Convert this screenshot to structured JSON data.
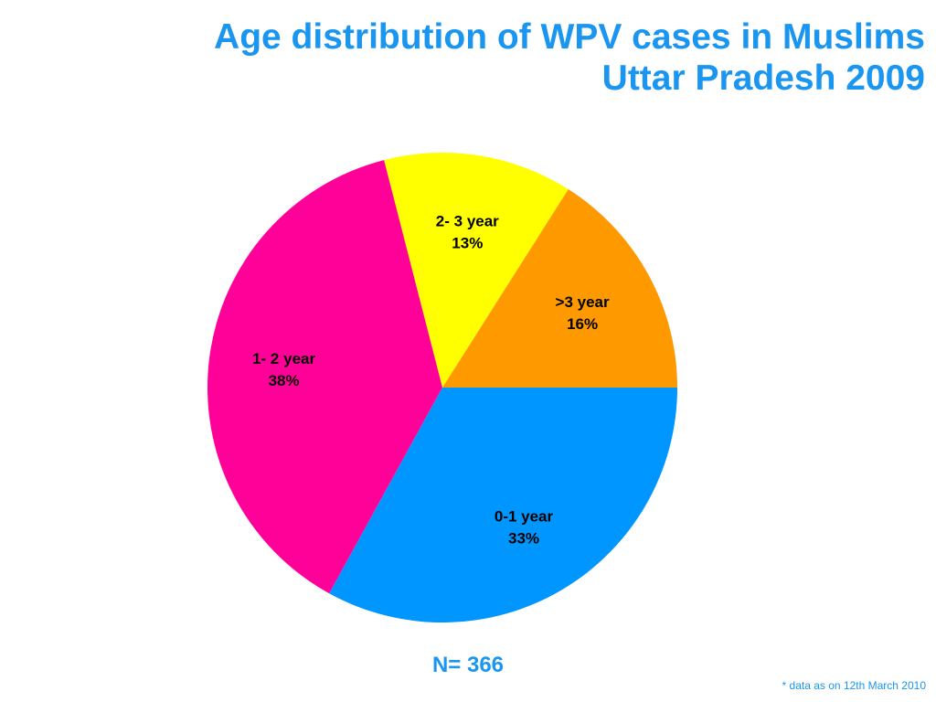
{
  "title": {
    "line1": "Age distribution of WPV cases in Muslims",
    "line2": "Uttar Pradesh 2009"
  },
  "colors": {
    "title": "#1a96f0",
    "slice_0_1": "#0096ff",
    "slice_1_2": "#ff0099",
    "slice_2_3": "#ffff00",
    "slice_gt3": "#ff9900"
  },
  "chart_data": {
    "type": "pie",
    "title": "Age distribution of WPV cases in Muslims Uttar Pradesh 2009",
    "slices": [
      {
        "label": ">3 year",
        "value": 16,
        "value_label": "16%",
        "color": "#ff9900"
      },
      {
        "label": "2- 3 year",
        "value": 13,
        "value_label": "13%",
        "color": "#ffff00"
      },
      {
        "label": "1- 2 year",
        "value": 38,
        "value_label": "38%",
        "color": "#ff0099"
      },
      {
        "label": "0-1 year",
        "value": 33,
        "value_label": "33%",
        "color": "#0096ff"
      }
    ],
    "start_angle_deg": 0,
    "direction": "counterclockwise",
    "legend": "none",
    "labels_inside": true
  },
  "n_text": "N= 366",
  "footnote": "* data as on 12th March 2010"
}
